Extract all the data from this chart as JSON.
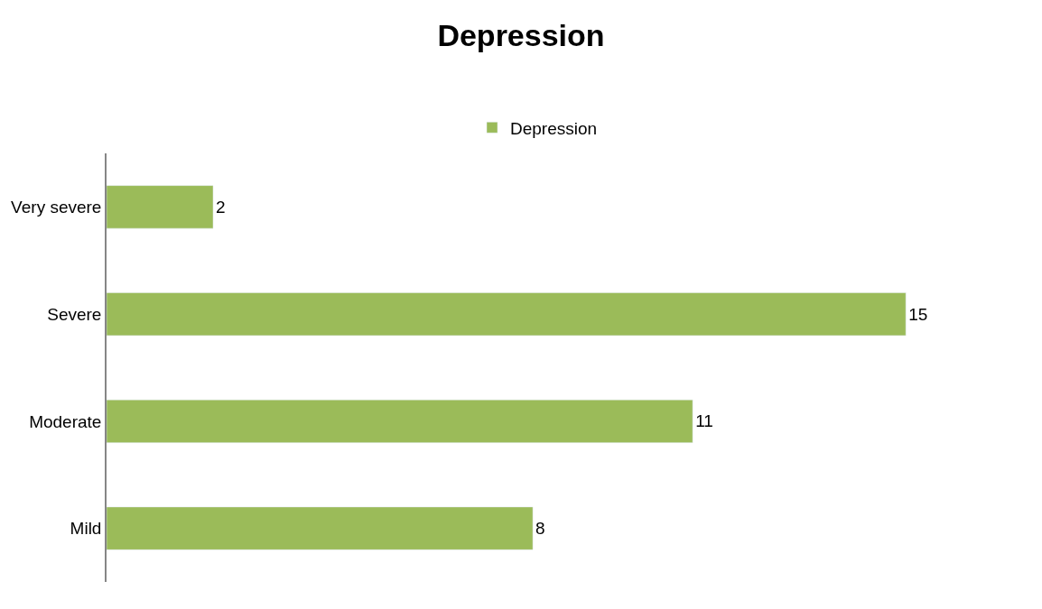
{
  "chart_data": {
    "type": "bar",
    "orientation": "horizontal",
    "title": "Depression",
    "categories": [
      "Very severe",
      "Severe",
      "Moderate",
      "Mild"
    ],
    "series": [
      {
        "name": "Depression",
        "color": "#9bbb59",
        "values": [
          2,
          15,
          11,
          8
        ]
      }
    ],
    "data_labels": true,
    "legend": "top",
    "tick_labels": "y"
  }
}
